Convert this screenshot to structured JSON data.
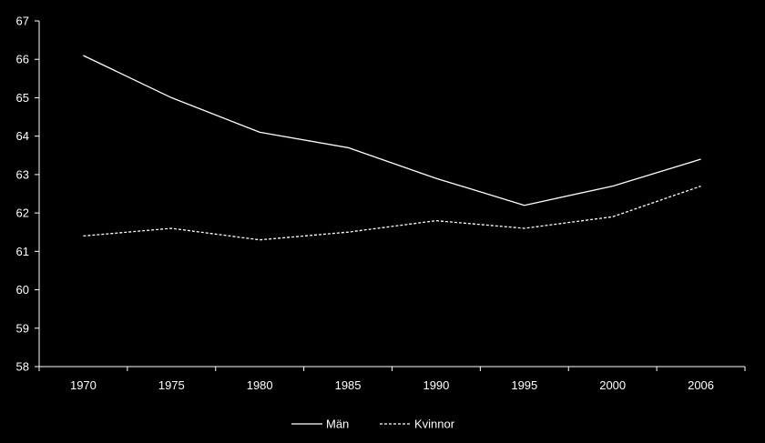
{
  "chart_data": {
    "type": "line",
    "categories": [
      "1970",
      "1975",
      "1980",
      "1985",
      "1990",
      "1995",
      "2000",
      "2006"
    ],
    "series": [
      {
        "name": "Män",
        "values": [
          66.1,
          65.0,
          64.1,
          63.7,
          62.9,
          62.2,
          62.7,
          63.4
        ],
        "style": "solid"
      },
      {
        "name": "Kvinnor",
        "values": [
          61.4,
          61.6,
          61.3,
          61.5,
          61.8,
          61.6,
          61.9,
          62.7
        ],
        "style": "dashed"
      }
    ],
    "ylim": [
      58,
      67
    ],
    "yticks": [
      "58",
      "59",
      "60",
      "61",
      "62",
      "63",
      "64",
      "65",
      "66",
      "67"
    ],
    "grid": false,
    "legend": "bottom",
    "colors": {
      "background": "#000000",
      "axis": "#ffffff",
      "line": "#ffffff",
      "text": "#ffffff"
    }
  }
}
